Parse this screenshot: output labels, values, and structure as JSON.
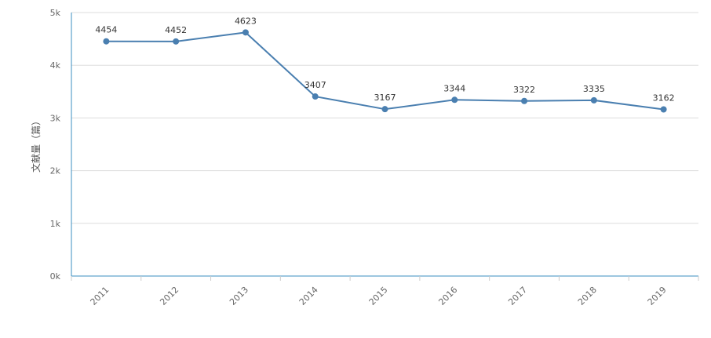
{
  "chart_data": {
    "type": "line",
    "categories": [
      "2011",
      "2012",
      "2013",
      "2014",
      "2015",
      "2016",
      "2017",
      "2018",
      "2019"
    ],
    "series": [
      {
        "values": [
          4454,
          4452,
          4623,
          3407,
          3167,
          3344,
          3322,
          3335,
          3162
        ]
      }
    ],
    "data_labels": [
      "4454",
      "4452",
      "4623",
      "3407",
      "3167",
      "3344",
      "3322",
      "3335",
      "3162"
    ],
    "ylabel": "文献量（篇）",
    "xlabel": "",
    "ylim": [
      0,
      5000
    ],
    "yticks": [
      0,
      1000,
      2000,
      3000,
      4000,
      5000
    ],
    "ytick_labels": [
      "0k",
      "1k",
      "2k",
      "3k",
      "4k",
      "5k"
    ],
    "grid": "horizontal",
    "legend": "none",
    "colors": {
      "line": "#4a7fb0",
      "axis": "#3b8fc2",
      "grid": "#dddddd"
    }
  }
}
